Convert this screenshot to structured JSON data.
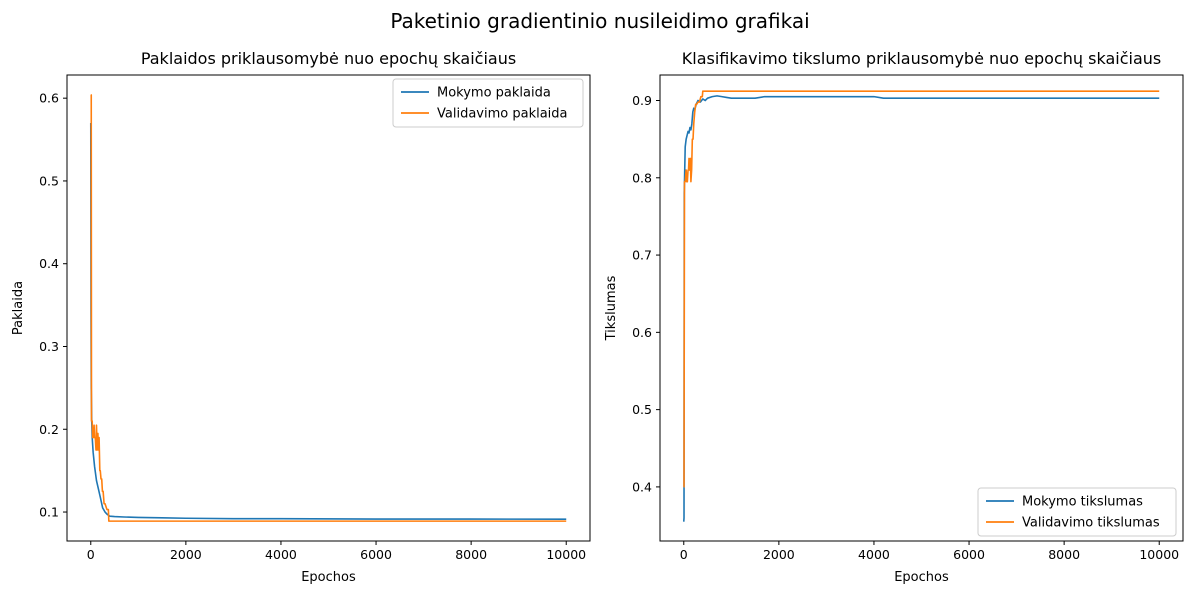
{
  "figure": {
    "suptitle": "Paketinio gradientinio nusileidimo grafikai"
  },
  "colors": {
    "train": "#1f77b4",
    "validation": "#ff7f0e"
  },
  "chart_data": [
    {
      "type": "line",
      "title": "Paklaidos priklausomybė nuo epochų skaičiaus",
      "xlabel": "Epochos",
      "ylabel": "Paklaida",
      "xlim": [
        -500,
        10500
      ],
      "ylim": [
        0.065,
        0.628
      ],
      "xticks": [
        0,
        2000,
        4000,
        6000,
        8000,
        10000
      ],
      "yticks": [
        0.1,
        0.2,
        0.3,
        0.4,
        0.5,
        0.6
      ],
      "ytick_labels": [
        "0.1",
        "0.2",
        "0.3",
        "0.4",
        "0.5",
        "0.6"
      ],
      "legend": "top-right",
      "grid": false,
      "series": [
        {
          "name": "Mokymo paklaida",
          "color": "#1f77b4",
          "x": [
            0,
            5,
            10,
            20,
            30,
            50,
            80,
            120,
            160,
            200,
            250,
            300,
            350,
            400,
            500,
            700,
            1000,
            1500,
            2000,
            3000,
            4000,
            6000,
            8000,
            10000
          ],
          "y": [
            0.57,
            0.34,
            0.25,
            0.21,
            0.19,
            0.172,
            0.155,
            0.138,
            0.128,
            0.118,
            0.105,
            0.1,
            0.097,
            0.095,
            0.0945,
            0.094,
            0.0935,
            0.093,
            0.0925,
            0.092,
            0.092,
            0.0915,
            0.0915,
            0.0913
          ]
        },
        {
          "name": "Validavimo paklaida",
          "color": "#ff7f0e",
          "x": [
            0,
            10,
            15,
            30,
            40,
            55,
            70,
            80,
            95,
            110,
            120,
            135,
            150,
            160,
            175,
            190,
            200,
            215,
            230,
            245,
            260,
            280,
            300,
            340,
            370,
            380,
            400,
            10000
          ],
          "y": [
            0.604,
            0.604,
            0.21,
            0.21,
            0.19,
            0.19,
            0.205,
            0.19,
            0.19,
            0.175,
            0.205,
            0.175,
            0.195,
            0.175,
            0.19,
            0.15,
            0.15,
            0.14,
            0.14,
            0.125,
            0.125,
            0.11,
            0.11,
            0.103,
            0.103,
            0.089,
            0.089,
            0.089
          ]
        }
      ]
    },
    {
      "type": "line",
      "title": "Klasifikavimo tikslumo priklausomybė nuo epochų skaičiaus",
      "xlabel": "Epochos",
      "ylabel": "Tikslumas",
      "xlim": [
        -500,
        10500
      ],
      "ylim": [
        0.33,
        0.933
      ],
      "xticks": [
        0,
        2000,
        4000,
        6000,
        8000,
        10000
      ],
      "yticks": [
        0.4,
        0.5,
        0.6,
        0.7,
        0.8,
        0.9
      ],
      "ytick_labels": [
        "0.4",
        "0.5",
        "0.6",
        "0.7",
        "0.8",
        "0.9"
      ],
      "legend": "bottom-right",
      "grid": false,
      "series": [
        {
          "name": "Mokymo tikslumas",
          "color": "#1f77b4",
          "x": [
            0,
            5,
            10,
            20,
            30,
            50,
            70,
            90,
            110,
            130,
            150,
            170,
            190,
            210,
            230,
            260,
            300,
            350,
            400,
            450,
            500,
            600,
            700,
            800,
            900,
            1000,
            1500,
            1700,
            2000,
            3000,
            4000,
            4200,
            6000,
            8000,
            10000
          ],
          "y": [
            0.355,
            0.36,
            0.78,
            0.81,
            0.84,
            0.85,
            0.855,
            0.86,
            0.858,
            0.865,
            0.862,
            0.87,
            0.885,
            0.89,
            0.888,
            0.895,
            0.9,
            0.898,
            0.902,
            0.9,
            0.903,
            0.905,
            0.906,
            0.905,
            0.904,
            0.903,
            0.903,
            0.905,
            0.905,
            0.905,
            0.905,
            0.903,
            0.903,
            0.903,
            0.903
          ]
        },
        {
          "name": "Validavimo tikslumas",
          "color": "#ff7f0e",
          "x": [
            0,
            5,
            15,
            30,
            50,
            60,
            75,
            90,
            100,
            110,
            125,
            140,
            150,
            165,
            180,
            195,
            210,
            230,
            250,
            270,
            300,
            330,
            360,
            390,
            400,
            500,
            1000,
            10000
          ],
          "y": [
            0.4,
            0.4,
            0.795,
            0.795,
            0.81,
            0.795,
            0.795,
            0.81,
            0.81,
            0.825,
            0.81,
            0.825,
            0.795,
            0.81,
            0.85,
            0.85,
            0.87,
            0.885,
            0.895,
            0.895,
            0.898,
            0.898,
            0.905,
            0.905,
            0.912,
            0.912,
            0.912,
            0.912
          ]
        }
      ]
    }
  ]
}
